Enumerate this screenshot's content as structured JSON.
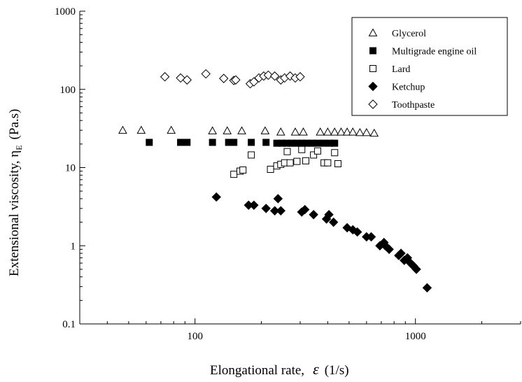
{
  "chart_data": {
    "type": "scatter",
    "title": "",
    "xlabel": "Elongational rate,",
    "xlabel_symbol": "ε",
    "xlabel_unit": "(1/s)",
    "ylabel": "Extensional viscosity, η",
    "ylabel_subscript": "E",
    "ylabel_unit": "(Pa.s)",
    "x_scale": "log",
    "y_scale": "log",
    "xlim": [
      30,
      3000
    ],
    "ylim": [
      0.1,
      1000
    ],
    "x_ticks": [
      100,
      1000
    ],
    "x_tick_labels": [
      "100",
      "1000"
    ],
    "y_ticks": [
      0.1,
      1,
      10,
      100,
      1000
    ],
    "y_tick_labels": [
      "0.1",
      "1",
      "10",
      "100",
      "1000"
    ],
    "grid": false,
    "legend_position": "top-right",
    "series": [
      {
        "name": "Glycerol",
        "marker": "triangle-open",
        "x": [
          47,
          57,
          78,
          120,
          140,
          163,
          208,
          245,
          285,
          310,
          370,
          400,
          430,
          460,
          490,
          520,
          560,
          600,
          650
        ],
        "y": [
          30,
          30,
          30,
          29.5,
          29.5,
          29.5,
          29.5,
          28.5,
          28.5,
          28.5,
          28.5,
          28.5,
          28.5,
          28.5,
          28.5,
          28.5,
          28,
          28,
          27.5
        ]
      },
      {
        "name": "Multigrade engine oil",
        "marker": "square-filled",
        "x": [
          62,
          86,
          92,
          120,
          142,
          150,
          180,
          210,
          235,
          248,
          260,
          275,
          290,
          305,
          320,
          340,
          360,
          385,
          410,
          430
        ],
        "y": [
          21,
          21,
          21,
          21,
          21,
          21,
          21,
          21,
          20.5,
          20.5,
          20.5,
          20.5,
          20.5,
          20.5,
          20.5,
          20.5,
          20.5,
          20.5,
          20.5,
          20.5
        ]
      },
      {
        "name": "Lard",
        "marker": "square-open",
        "x": [
          150,
          160,
          165,
          180,
          220,
          235,
          245,
          255,
          262,
          270,
          290,
          305,
          318,
          345,
          360,
          385,
          400,
          430,
          445
        ],
        "y": [
          8.2,
          9,
          9.3,
          14.5,
          9.5,
          10.5,
          11,
          11.5,
          16,
          11.5,
          12,
          17,
          12.2,
          14.5,
          16.3,
          11.5,
          11.5,
          15.5,
          11.2
        ]
      },
      {
        "name": "Ketchup",
        "marker": "diamond-filled",
        "x": [
          125,
          175,
          185,
          210,
          230,
          238,
          245,
          305,
          315,
          345,
          395,
          405,
          425,
          490,
          520,
          545,
          600,
          630,
          690,
          720,
          730,
          760,
          840,
          860,
          890,
          920,
          950,
          980,
          1010,
          1130
        ],
        "y": [
          4.2,
          3.3,
          3.3,
          3,
          2.8,
          4,
          2.8,
          2.7,
          2.9,
          2.5,
          2.2,
          2.5,
          2,
          1.7,
          1.6,
          1.5,
          1.3,
          1.3,
          1,
          1.1,
          1,
          0.9,
          0.75,
          0.8,
          0.65,
          0.7,
          0.6,
          0.55,
          0.5,
          0.29
        ]
      },
      {
        "name": "Toothpaste",
        "marker": "diamond-open",
        "x": [
          73,
          86,
          92,
          112,
          135,
          150,
          153,
          178,
          185,
          195,
          205,
          215,
          230,
          245,
          255,
          270,
          285,
          300
        ],
        "y": [
          145,
          140,
          132,
          158,
          138,
          130,
          132,
          118,
          125,
          140,
          148,
          152,
          148,
          132,
          140,
          148,
          140,
          145
        ]
      }
    ]
  }
}
